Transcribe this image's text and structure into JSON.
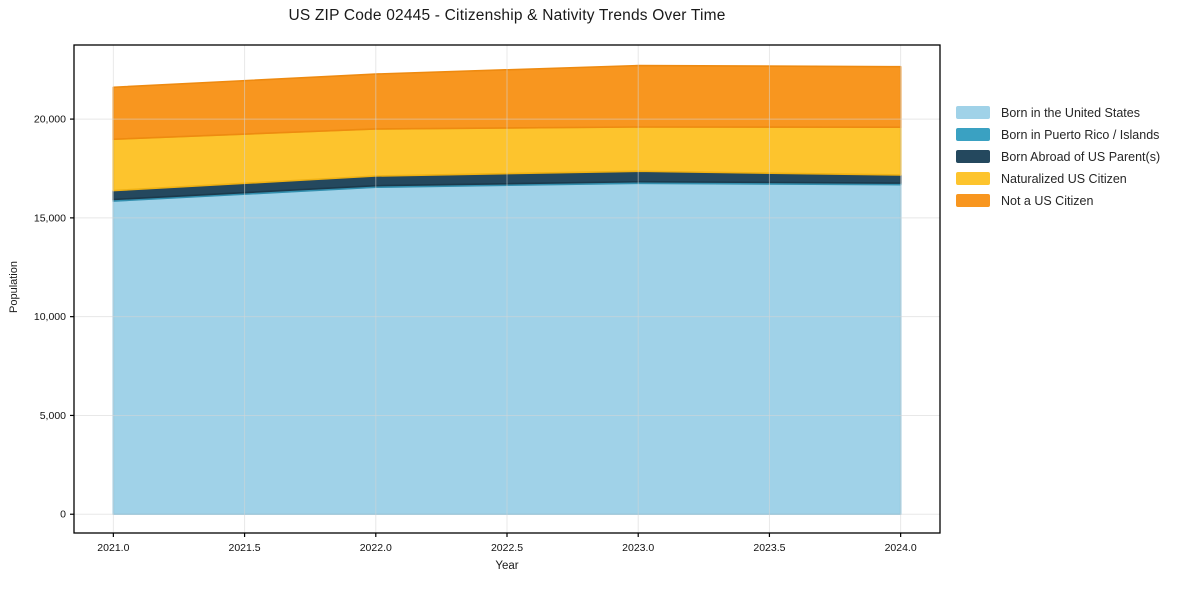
{
  "title": "US ZIP Code 02445 - Citizenship & Nativity Trends Over Time",
  "chart_data": {
    "type": "area",
    "stacked": true,
    "title": "US ZIP Code 02445 - Citizenship & Nativity Trends Over Time",
    "xlabel": "Year",
    "ylabel": "Population",
    "x": [
      2021,
      2022,
      2023,
      2024
    ],
    "series": [
      {
        "name": "Born in the United States",
        "color": "#a0d2e8",
        "edge": "#8cc6e0",
        "values": [
          15850,
          16550,
          16750,
          16680
        ]
      },
      {
        "name": "Born in Puerto Rico / Islands",
        "color": "#3aa1c2",
        "edge": "#338fae",
        "values": [
          80,
          80,
          80,
          80
        ]
      },
      {
        "name": "Born Abroad of US Parent(s)",
        "color": "#24485e",
        "edge": "#1c3a4c",
        "values": [
          450,
          490,
          530,
          410
        ]
      },
      {
        "name": "Naturalized US Citizen",
        "color": "#fdc42d",
        "edge": "#efb113",
        "values": [
          2600,
          2380,
          2240,
          2420
        ]
      },
      {
        "name": "Not a US Citizen",
        "color": "#f8961f",
        "edge": "#ee8a10",
        "values": [
          2630,
          2780,
          3110,
          3060
        ]
      }
    ],
    "xlim": [
      2020.85,
      2024.15
    ],
    "ylim": [
      -950,
      23750
    ],
    "xticks": [
      2021.0,
      2021.5,
      2022.0,
      2022.5,
      2023.0,
      2023.5,
      2024.0
    ],
    "xtick_labels": [
      "2021.0",
      "2021.5",
      "2022.0",
      "2022.5",
      "2023.0",
      "2023.5",
      "2024.0"
    ],
    "yticks": [
      0,
      5000,
      10000,
      15000,
      20000
    ],
    "ytick_labels": [
      "0",
      "5,000",
      "10,000",
      "15,000",
      "20,000"
    ],
    "grid": true,
    "grid_color": "#d5d5d5",
    "frame_color": "#000000",
    "tick_label_color": "#111111",
    "legend_position": "right"
  }
}
